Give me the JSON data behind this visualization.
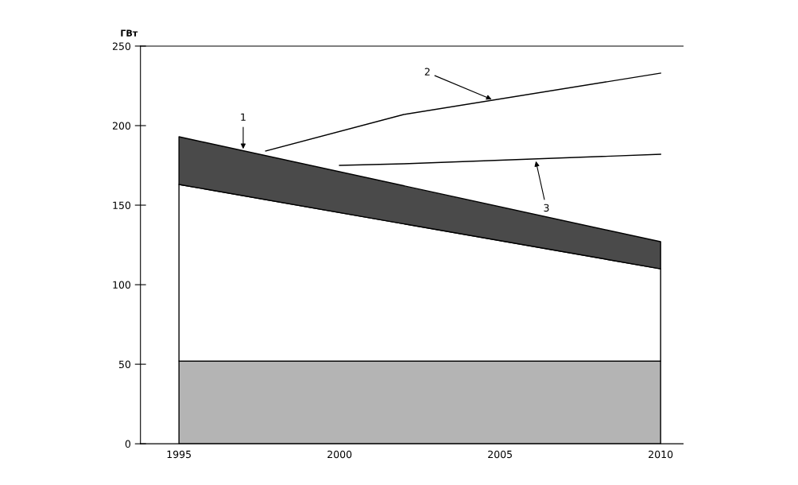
{
  "chart_data": {
    "type": "area",
    "ylabel": "ГВт",
    "stacked": true,
    "x": [
      1995,
      2010
    ],
    "xlim": [
      1993.8,
      2010.7
    ],
    "ylim": [
      0,
      250
    ],
    "xticks": [
      1995,
      2000,
      2005,
      2010
    ],
    "yticks": [
      0,
      50,
      100,
      150,
      200,
      250
    ],
    "series": [
      {
        "color": "#b4b4b4",
        "values": [
          52,
          52
        ]
      },
      {
        "color": "#ffffff",
        "values": [
          111,
          58
        ]
      },
      {
        "color": "#4a4a4a",
        "values": [
          30,
          17
        ]
      },
      {
        "type": "line",
        "color": "#000000",
        "x": [
          1997.7,
          2002,
          2010
        ],
        "values": [
          184,
          207,
          233
        ]
      },
      {
        "type": "line",
        "color": "#000000",
        "x": [
          2000,
          2002,
          2010
        ],
        "values": [
          175,
          176,
          182
        ]
      }
    ],
    "annotations": [
      {
        "text": "1",
        "x": 1997,
        "y": 184
      },
      {
        "text": "2",
        "x": 2004.8,
        "y": 216
      },
      {
        "text": "3",
        "x": 2006.1,
        "y": 179
      }
    ]
  }
}
